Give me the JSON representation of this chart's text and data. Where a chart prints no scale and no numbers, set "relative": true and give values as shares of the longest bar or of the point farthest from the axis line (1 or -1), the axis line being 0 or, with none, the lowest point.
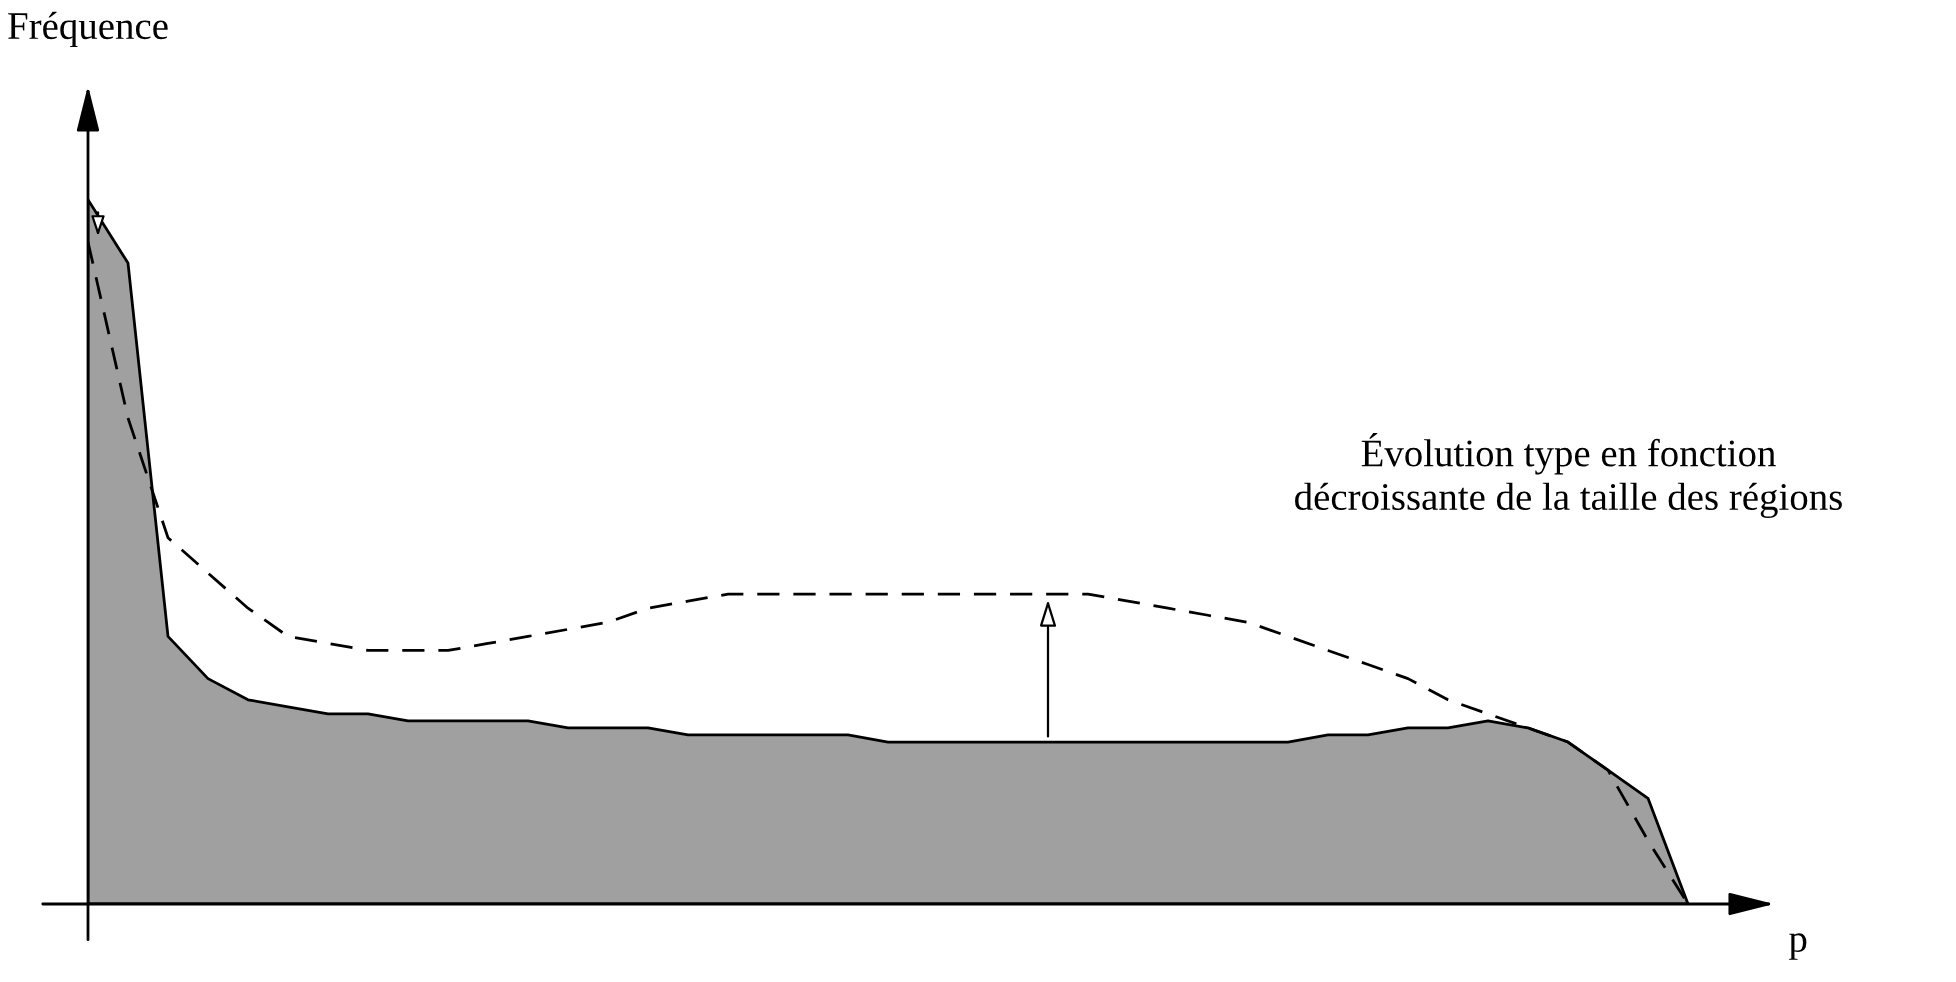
{
  "chart_data": {
    "type": "area",
    "relative": true,
    "xlabel": "p",
    "ylabel": "Fréquence",
    "annotations": [
      "Évolution type en fonction\ndécroissante de la taille des régions"
    ],
    "categories": [
      null,
      null,
      null,
      null,
      null,
      null,
      null,
      null,
      null,
      null,
      null,
      null,
      null,
      null,
      null,
      null,
      null,
      null,
      null,
      null,
      null,
      null,
      null,
      null,
      null,
      null,
      null,
      null,
      null,
      null,
      null,
      null,
      null,
      null,
      null,
      null,
      null,
      null,
      null,
      null,
      null
    ],
    "series": [
      {
        "color": "#a0a0a0",
        "values": [
          1,
          0.91,
          0.38,
          0.32,
          0.29,
          0.28,
          0.27,
          0.27,
          0.26,
          0.26,
          0.26,
          0.26,
          0.25,
          0.25,
          0.25,
          0.24,
          0.24,
          0.24,
          0.24,
          0.24,
          0.23,
          0.23,
          0.23,
          0.23,
          0.23,
          0.23,
          0.23,
          0.23,
          0.23,
          0.23,
          0.23,
          0.24,
          0.24,
          0.25,
          0.25,
          0.26,
          0.25,
          0.23,
          0.19,
          0.15,
          0
        ]
      },
      {
        "type": "line",
        "color": "#000000",
        "line_style": "dashed",
        "values": [
          0.94,
          0.69,
          0.52,
          0.47,
          0.42,
          0.38,
          0.37,
          0.36,
          0.36,
          0.36,
          0.37,
          0.38,
          0.39,
          0.4,
          0.42,
          0.43,
          0.44,
          0.44,
          0.44,
          0.44,
          0.44,
          0.44,
          0.44,
          0.44,
          0.44,
          0.44,
          0.43,
          0.42,
          0.41,
          0.4,
          0.38,
          0.36,
          0.34,
          0.32,
          0.29,
          0.27,
          0.25,
          0.23,
          0.19,
          0.09,
          0
        ]
      }
    ],
    "legend": false
  }
}
